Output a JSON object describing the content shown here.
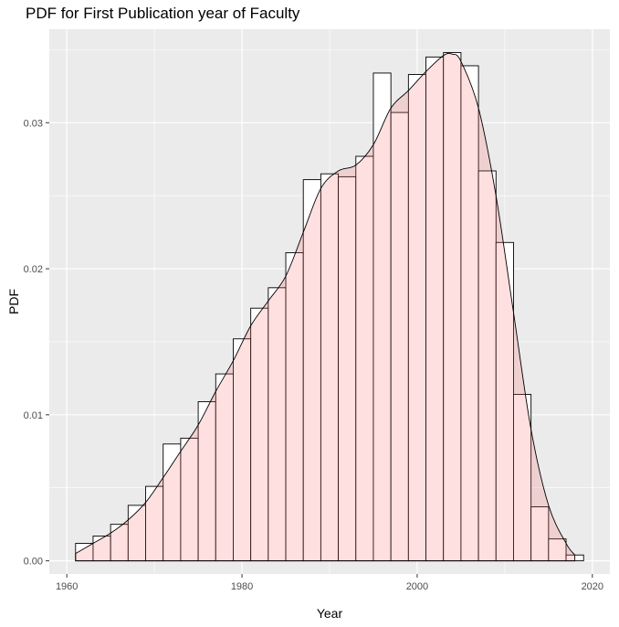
{
  "chart_data": {
    "type": "bar",
    "title": "PDF for First Publication year of Faculty",
    "xlabel": "Year",
    "ylabel": "PDF",
    "xlim": [
      1958,
      2022
    ],
    "ylim": [
      -0.0009,
      0.0364
    ],
    "x_ticks": [
      1960,
      1980,
      2000,
      2020
    ],
    "x_tick_labels": [
      "1960",
      "1980",
      "2000",
      "2020"
    ],
    "y_ticks": [
      0.0,
      0.01,
      0.02,
      0.03
    ],
    "y_tick_labels": [
      "0.00",
      "0.01",
      "0.02",
      "0.03"
    ],
    "grid": true,
    "histogram": {
      "bin_width": 2,
      "bin_start": 1961,
      "values": [
        0.0012,
        0.0017,
        0.0025,
        0.0038,
        0.0051,
        0.008,
        0.0084,
        0.0109,
        0.0128,
        0.0152,
        0.0173,
        0.0187,
        0.0211,
        0.0261,
        0.0265,
        0.0263,
        0.0277,
        0.0334,
        0.0307,
        0.0333,
        0.0345,
        0.0348,
        0.0339,
        0.0267,
        0.0218,
        0.0114,
        0.0037,
        0.0015,
        0.0004
      ],
      "fill_color": "#ffffff",
      "stroke_color": "#000000"
    },
    "density": {
      "x": [
        1961,
        1963,
        1965,
        1967,
        1969,
        1971,
        1973,
        1975,
        1977,
        1979,
        1981,
        1983,
        1985,
        1987,
        1989,
        1991,
        1993,
        1995,
        1997,
        1999,
        2001,
        2003,
        2004,
        2005,
        2007,
        2009,
        2011,
        2013,
        2015,
        2017,
        2018
      ],
      "y": [
        0.0005,
        0.0012,
        0.0019,
        0.0028,
        0.004,
        0.0057,
        0.0075,
        0.0093,
        0.0116,
        0.0137,
        0.0161,
        0.0178,
        0.0195,
        0.0225,
        0.0255,
        0.0267,
        0.0271,
        0.0285,
        0.031,
        0.0322,
        0.0335,
        0.0346,
        0.0347,
        0.0342,
        0.031,
        0.025,
        0.017,
        0.009,
        0.0038,
        0.0012,
        0.0004
      ],
      "fill_color": "#ff6666",
      "fill_opacity": 0.2,
      "stroke_color": "#000000"
    },
    "panel_color": "#ebebeb",
    "grid_color": "#ffffff"
  }
}
